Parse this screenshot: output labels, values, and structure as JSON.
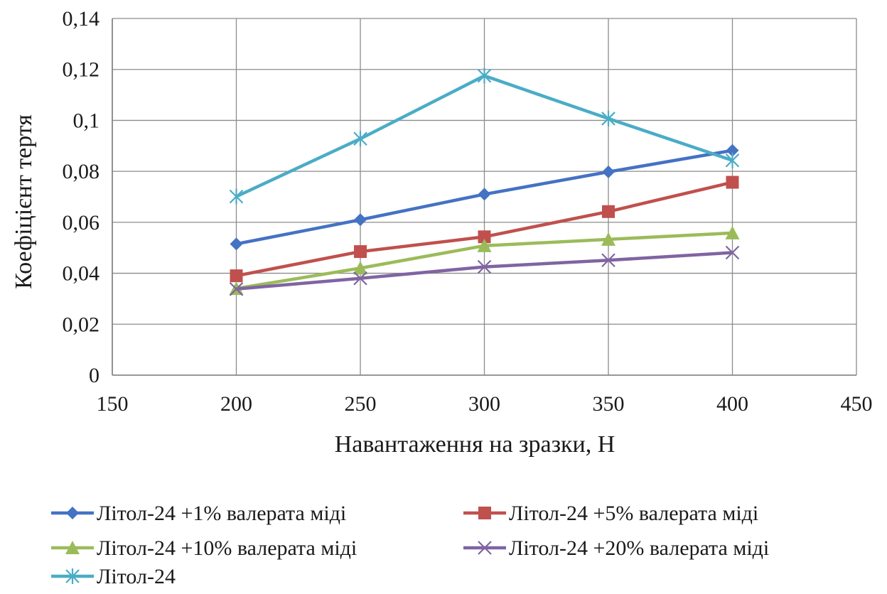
{
  "chart_data": {
    "type": "line",
    "title": "",
    "xlabel": "Навантаження на зразки, Н",
    "ylabel": "Коефіцієнт тертя",
    "xlim": [
      150,
      450
    ],
    "ylim": [
      0,
      0.14
    ],
    "x_ticks": [
      150,
      200,
      250,
      300,
      350,
      400,
      450
    ],
    "x_tick_labels": [
      "150",
      "200",
      "250",
      "300",
      "350",
      "400",
      "450"
    ],
    "y_ticks": [
      0,
      0.02,
      0.04,
      0.06,
      0.08,
      0.1,
      0.12,
      0.14
    ],
    "y_tick_labels": [
      "0",
      "0,02",
      "0,04",
      "0,06",
      "0,08",
      "0,1",
      "0,12",
      "0,14"
    ],
    "grid": true,
    "legend_position": "bottom",
    "x": [
      200,
      250,
      300,
      350,
      400
    ],
    "series": [
      {
        "name": "Літол-24 +1% валерата міді",
        "values": [
          0.0515,
          0.061,
          0.071,
          0.0798,
          0.0882
        ],
        "color": "#4472c4",
        "marker": "diamond"
      },
      {
        "name": "Літол-24 +5% валерата міді",
        "values": [
          0.039,
          0.0485,
          0.0543,
          0.0642,
          0.0757
        ],
        "color": "#c0504d",
        "marker": "square"
      },
      {
        "name": "Літол-24 +10% валерата міді",
        "values": [
          0.034,
          0.042,
          0.0508,
          0.0533,
          0.0558
        ],
        "color": "#9bbb59",
        "marker": "triangle"
      },
      {
        "name": "Літол-24 +20% валерата міді",
        "values": [
          0.0338,
          0.038,
          0.0425,
          0.0451,
          0.0481
        ],
        "color": "#8064a2",
        "marker": "x"
      },
      {
        "name": "Літол-24",
        "values": [
          0.0701,
          0.0928,
          0.1175,
          0.1007,
          0.0843
        ],
        "color": "#4bacc6",
        "marker": "star"
      }
    ]
  }
}
